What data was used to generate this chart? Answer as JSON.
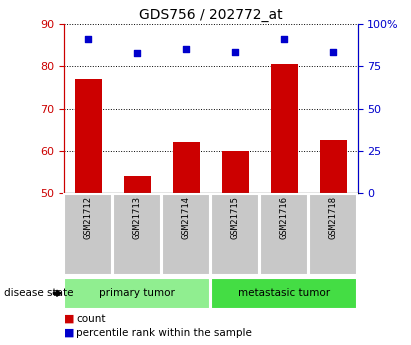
{
  "title": "GDS756 / 202772_at",
  "samples": [
    "GSM21712",
    "GSM21713",
    "GSM21714",
    "GSM21715",
    "GSM21716",
    "GSM21718"
  ],
  "bar_values": [
    77,
    54,
    62,
    60,
    80.5,
    62.5
  ],
  "dot_values": [
    91,
    83,
    85.5,
    83.5,
    91,
    83.5
  ],
  "bar_bottom": 50,
  "ylim_left": [
    50,
    90
  ],
  "ylim_right": [
    0,
    100
  ],
  "yticks_left": [
    50,
    60,
    70,
    80,
    90
  ],
  "yticks_right": [
    0,
    25,
    50,
    75,
    100
  ],
  "ytick_labels_right": [
    "0",
    "25",
    "50",
    "75",
    "100%"
  ],
  "bar_color": "#cc0000",
  "dot_color": "#0000cc",
  "groups": [
    {
      "label": "primary tumor",
      "indices": [
        0,
        1,
        2
      ],
      "color": "#90ee90"
    },
    {
      "label": "metastasic tumor",
      "indices": [
        3,
        4,
        5
      ],
      "color": "#44dd44"
    }
  ],
  "disease_state_label": "disease state",
  "legend_bar_label": "count",
  "legend_dot_label": "percentile rank within the sample",
  "background_color": "#ffffff",
  "sample_box_color": "#c8c8c8",
  "title_fontsize": 10,
  "tick_fontsize": 8,
  "label_fontsize": 7.5,
  "legend_fontsize": 7.5
}
